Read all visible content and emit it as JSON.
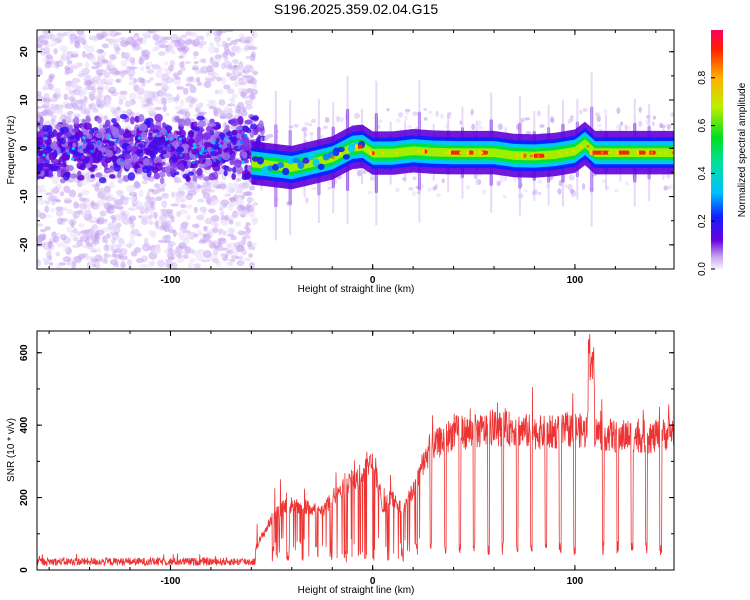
{
  "title": "S196.2025.359.02.04.G15",
  "chart_data": [
    {
      "type": "heatmap",
      "name": "spectrogram",
      "xlabel": "Height of straight line (km)",
      "ylabel": "Frequency (Hz)",
      "xlim": [
        -166,
        149
      ],
      "ylim": [
        -25,
        24.5
      ],
      "xticks": [
        -100,
        0,
        100
      ],
      "yticks": [
        -20,
        -10,
        0,
        10,
        20
      ],
      "colorbar": {
        "label": "Normalized spectral amplitude",
        "range": [
          0,
          1
        ],
        "ticks": [
          0.0,
          0.2,
          0.4,
          0.6,
          0.8
        ]
      },
      "ridge_x": [
        -60,
        -50,
        -40,
        -30,
        -20,
        -10,
        -5,
        0,
        10,
        20,
        30,
        40,
        50,
        60,
        70,
        80,
        90,
        100,
        105,
        110,
        120,
        130,
        140,
        149
      ],
      "ridge_freq": [
        -3,
        -3.5,
        -4,
        -3,
        -2,
        0.2,
        0.4,
        -1,
        -1,
        -0.5,
        -0.8,
        -0.9,
        -0.9,
        -0.9,
        -1.5,
        -1.6,
        -1.3,
        -0.6,
        1,
        -0.9,
        -0.9,
        -0.9,
        -0.9,
        -0.9
      ]
    },
    {
      "type": "line",
      "name": "snr",
      "xlabel": "Height of straight line (km)",
      "ylabel": "SNR (10 * v/v)",
      "xlim": [
        -166,
        149
      ],
      "ylim": [
        0,
        660
      ],
      "xticks": [
        -100,
        0,
        100
      ],
      "yticks": [
        0,
        200,
        400,
        600
      ],
      "color": "#ee3333",
      "series": [
        {
          "name": "SNR",
          "x": [
            -166,
            -150,
            -130,
            -110,
            -90,
            -70,
            -60,
            -55,
            -50,
            -45,
            -40,
            -35,
            -30,
            -25,
            -20,
            -15,
            -10,
            -5,
            -2,
            0,
            5,
            10,
            15,
            20,
            25,
            30,
            35,
            40,
            50,
            60,
            70,
            80,
            90,
            100,
            105,
            108,
            110,
            120,
            130,
            140,
            149
          ],
          "y": [
            22,
            20,
            22,
            21,
            24,
            25,
            40,
            90,
            140,
            170,
            180,
            175,
            170,
            160,
            200,
            230,
            250,
            270,
            300,
            300,
            180,
            200,
            160,
            220,
            300,
            340,
            360,
            380,
            380,
            390,
            390,
            380,
            380,
            390,
            380,
            420,
            380,
            370,
            370,
            365,
            385
          ]
        }
      ],
      "dropout_start": 0,
      "dropout_spacing": 7.1
    }
  ]
}
